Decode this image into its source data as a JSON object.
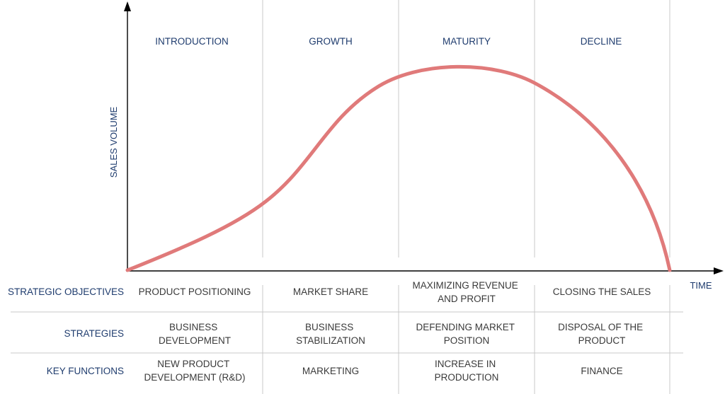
{
  "stages": [
    "INTRODUCTION",
    "GROWTH",
    "MATURITY",
    "DECLINE"
  ],
  "y_axis_label": "SALES VOLUME",
  "x_axis_label": "TIME",
  "colors": {
    "curve": "#e07a7a",
    "text": "#1f3c6e",
    "grid": "#c8c8c8"
  },
  "table": {
    "rows": [
      {
        "label": "STRATEGIC OBJECTIVES",
        "cells": [
          [
            "PRODUCT POSITIONING"
          ],
          [
            "MARKET SHARE"
          ],
          [
            "MAXIMIZING REVENUE",
            "AND PROFIT"
          ],
          [
            "CLOSING THE SALES"
          ]
        ]
      },
      {
        "label": "STRATEGIES",
        "cells": [
          [
            "BUSINESS",
            "DEVELOPMENT"
          ],
          [
            "BUSINESS",
            "STABILIZATION"
          ],
          [
            "DEFENDING MARKET",
            "POSITION"
          ],
          [
            "DISPOSAL OF THE",
            "PRODUCT"
          ]
        ]
      },
      {
        "label": "KEY FUNCTIONS",
        "cells": [
          [
            "NEW PRODUCT",
            "DEVELOPMENT (R&D)"
          ],
          [
            "MARKETING"
          ],
          [
            "INCREASE IN",
            "PRODUCTION"
          ],
          [
            "FINANCE"
          ]
        ]
      }
    ]
  }
}
